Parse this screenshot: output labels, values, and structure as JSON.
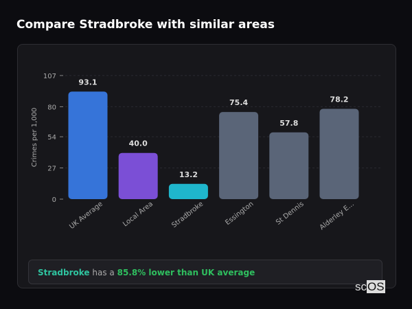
{
  "title": "Compare Stradbroke with similar areas",
  "chart_data": {
    "type": "bar",
    "ylabel": "Crimes per 1,000",
    "ylim": [
      0,
      107
    ],
    "yticks": [
      0,
      27,
      54,
      80,
      107
    ],
    "grid": true,
    "categories": [
      "UK Average",
      "Local Area",
      "Stradbroke",
      "Essington",
      "St Dennis",
      "Alderley E..."
    ],
    "values": [
      93.1,
      40.0,
      13.2,
      75.4,
      57.8,
      78.2
    ],
    "labels": [
      "93.1",
      "40.0",
      "13.2",
      "75.4",
      "57.8",
      "78.2"
    ],
    "colors": [
      "#3674d9",
      "#7b4fd6",
      "#1fb6cc",
      "#5a6578",
      "#5a6578",
      "#5a6578"
    ]
  },
  "summary": {
    "place": "Stradbroke",
    "middle": "has a",
    "stat": "85.8% lower than UK average"
  },
  "logo": {
    "text_a": "sc",
    "text_b": "OS"
  }
}
